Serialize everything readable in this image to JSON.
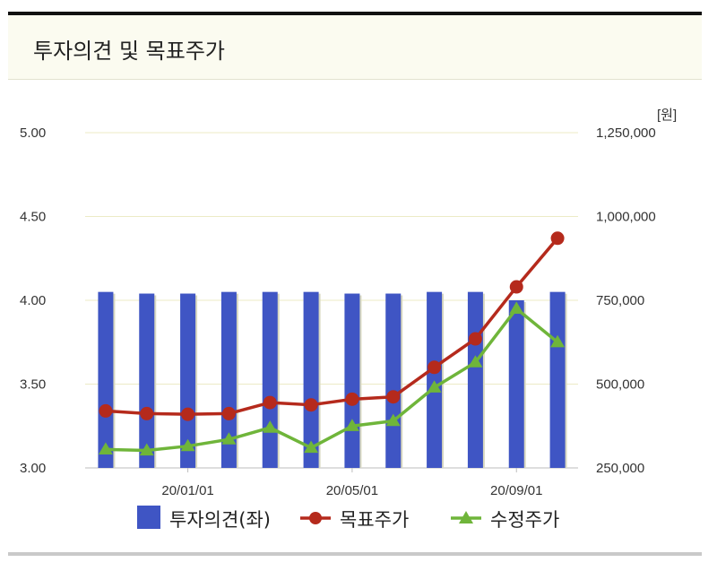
{
  "header": {
    "title": "투자의견 및 목표주가"
  },
  "chart_data": {
    "type": "bar+line",
    "unit_label": "[원]",
    "left_axis": {
      "ylim": [
        3.0,
        5.0
      ],
      "ticks": [
        "3.00",
        "3.50",
        "4.00",
        "4.50",
        "5.00"
      ]
    },
    "right_axis": {
      "ylim": [
        250000,
        1250000
      ],
      "ticks": [
        "250,000",
        "500,000",
        "750,000",
        "1,000,000",
        "1,250,000"
      ]
    },
    "x_tick_labels": [
      {
        "index": 2,
        "label": "20/01/01"
      },
      {
        "index": 6,
        "label": "20/05/01"
      },
      {
        "index": 10,
        "label": "20/09/01"
      }
    ],
    "grid": true,
    "legend_position": "bottom",
    "series": [
      {
        "name": "투자의견(좌)",
        "type": "bar",
        "axis": "left",
        "color": "#3f55c4",
        "values": [
          4.05,
          4.04,
          4.04,
          4.05,
          4.05,
          4.05,
          4.04,
          4.04,
          4.05,
          4.05,
          4.0,
          4.05
        ]
      },
      {
        "name": "목표주가",
        "type": "line",
        "marker": "circle",
        "axis": "right",
        "color": "#b52a1c",
        "values": [
          420000,
          412000,
          410000,
          412000,
          445000,
          438000,
          455000,
          462000,
          550000,
          635000,
          790000,
          935000
        ]
      },
      {
        "name": "수정주가",
        "type": "line",
        "marker": "triangle",
        "axis": "right",
        "color": "#6fb53a",
        "values": [
          305000,
          302000,
          315000,
          335000,
          370000,
          310000,
          375000,
          390000,
          490000,
          565000,
          725000,
          625000
        ]
      }
    ]
  }
}
